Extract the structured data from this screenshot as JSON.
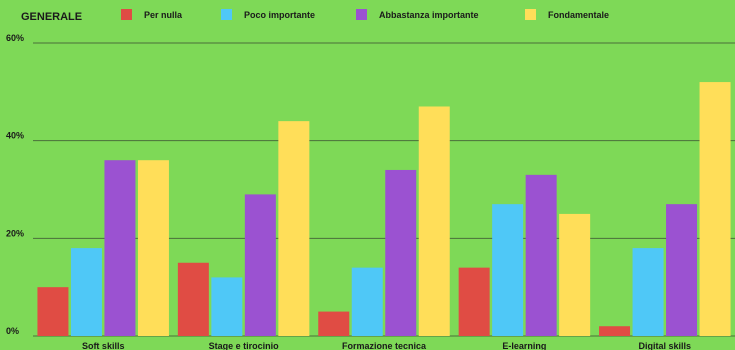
{
  "chart_data": {
    "type": "bar",
    "title": "GENERALE",
    "categories": [
      "Soft skills",
      "Stage e tirocinio",
      "Formazione tecnica",
      "E-learning",
      "Digital skills"
    ],
    "series": [
      {
        "name": "Per nulla",
        "color": "#e04c44",
        "values": [
          10,
          15,
          5,
          14,
          2
        ]
      },
      {
        "name": "Poco importante",
        "color": "#4fc8f7",
        "values": [
          18,
          12,
          14,
          27,
          18
        ]
      },
      {
        "name": "Abbastanza importante",
        "color": "#9b52d1",
        "values": [
          36,
          29,
          34,
          33,
          27
        ]
      },
      {
        "name": "Fondamentale",
        "color": "#ffde59",
        "values": [
          36,
          44,
          47,
          25,
          52
        ]
      }
    ],
    "yticks": [
      "0%",
      "20%",
      "40%",
      "60%"
    ],
    "ylim": [
      0,
      60
    ],
    "grid": true,
    "legend": "top"
  }
}
